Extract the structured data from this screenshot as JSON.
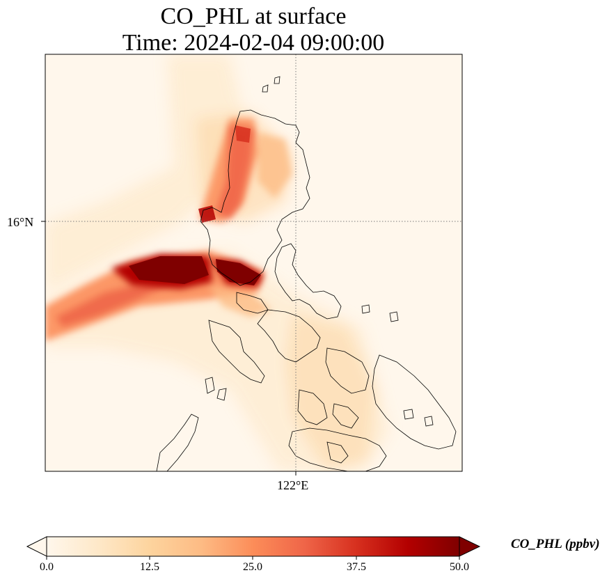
{
  "title": {
    "line1": "CO_PHL at surface",
    "line2": "Time: 2024-02-04 09:00:00"
  },
  "axes": {
    "lat_tick": "16°N",
    "lon_tick": "122°E",
    "gridlines": "dotted"
  },
  "colorbar": {
    "label": "CO_PHL (ppbv)",
    "colormap": "OrRd",
    "min": 0.0,
    "max": 50.0,
    "extend": "both",
    "ticks": [
      "0.0",
      "12.5",
      "25.0",
      "37.5",
      "50.0"
    ],
    "colors": [
      "#fff7ec",
      "#fee8c8",
      "#fdd49e",
      "#fdbb84",
      "#fc8d59",
      "#ef6548",
      "#d7301f",
      "#b30000",
      "#7f0000"
    ]
  }
}
